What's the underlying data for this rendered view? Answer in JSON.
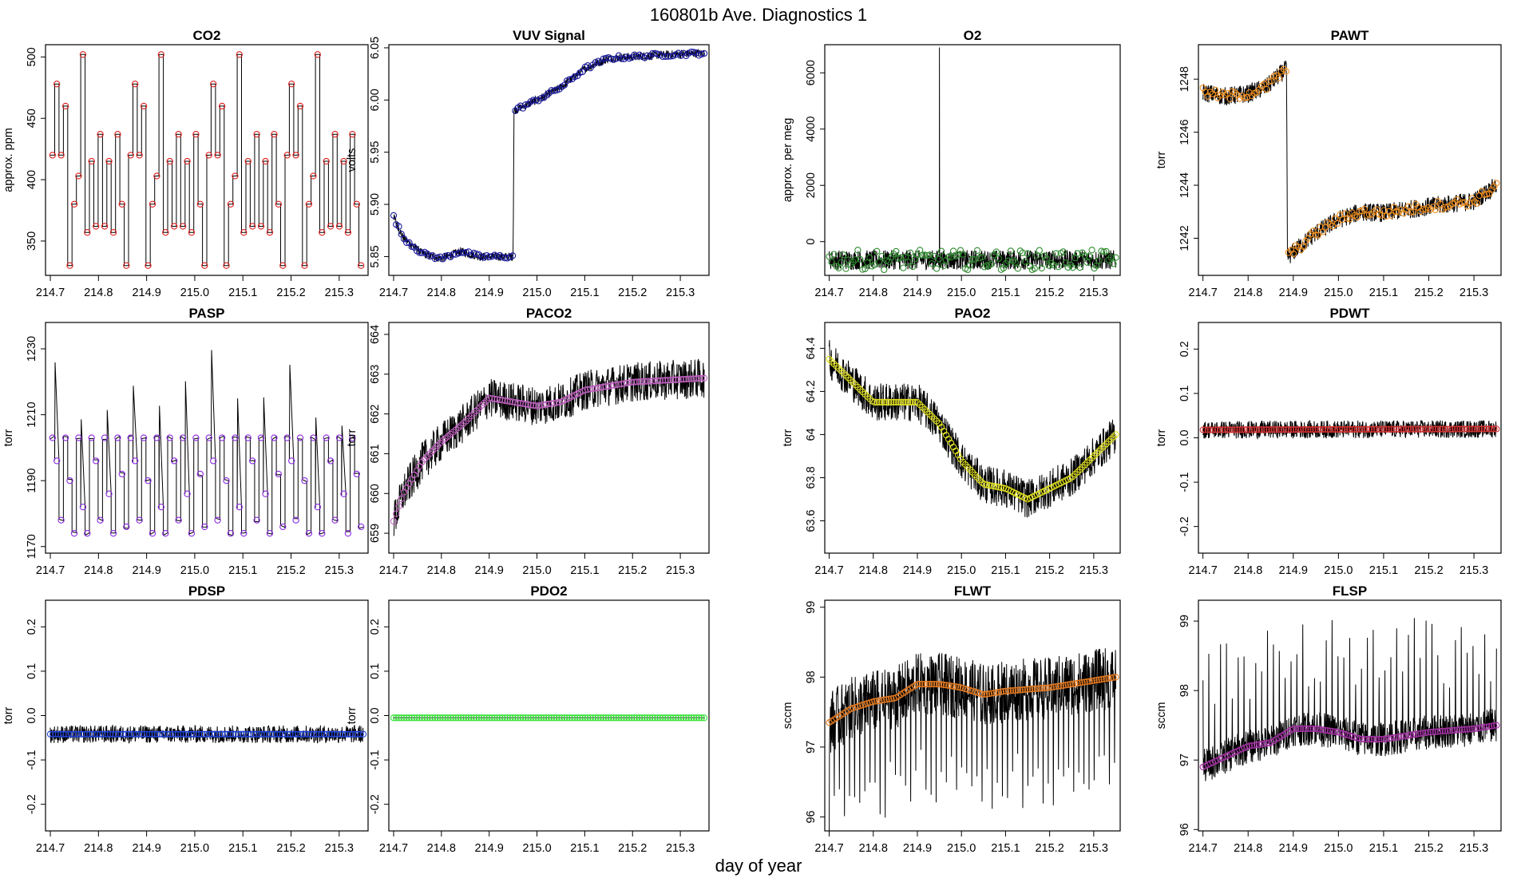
{
  "figure": {
    "title": "160801b   Ave. Diagnostics 1",
    "xlabel": "day of year"
  },
  "chart_data": [
    {
      "type": "line",
      "title": "CO2",
      "ylabel": "approx. ppm",
      "xlim": [
        214.69,
        215.36
      ],
      "ylim": [
        322,
        510
      ],
      "yticks": [
        350,
        400,
        450,
        500
      ],
      "xticks": [
        214.7,
        214.8,
        214.9,
        215.0,
        215.1,
        215.2,
        215.3
      ],
      "pattern": "cycle",
      "levels": [
        420,
        478,
        420,
        460,
        330,
        380,
        403,
        502,
        357,
        415,
        362,
        437,
        362,
        415,
        357,
        437,
        380,
        330
      ],
      "noise": 0,
      "marker_color": "#e02020",
      "axis_break": null
    },
    {
      "type": "line",
      "title": "VUV Signal",
      "ylabel": "volts",
      "xlim": [
        214.69,
        215.36
      ],
      "ylim": [
        5.832,
        6.053
      ],
      "yticks": [
        5.85,
        5.9,
        5.95,
        6.0,
        6.05
      ],
      "xticks": [
        214.7,
        214.8,
        214.9,
        215.0,
        215.1,
        215.2,
        215.3
      ],
      "knots": [
        [
          214.7,
          5.888
        ],
        [
          214.72,
          5.868
        ],
        [
          214.76,
          5.853
        ],
        [
          214.8,
          5.848
        ],
        [
          214.84,
          5.855
        ],
        [
          214.88,
          5.85
        ],
        [
          214.95,
          5.85
        ],
        [
          214.952,
          5.99
        ],
        [
          215.0,
          6.0
        ],
        [
          215.05,
          6.012
        ],
        [
          215.1,
          6.03
        ],
        [
          215.15,
          6.04
        ],
        [
          215.25,
          6.043
        ],
        [
          215.35,
          6.045
        ]
      ],
      "noise": 0.004,
      "marker_color": "#1a1a9c"
    },
    {
      "type": "line",
      "title": "O2",
      "ylabel": "approx. per meg",
      "xlim": [
        214.69,
        215.36
      ],
      "ylim": [
        -1200,
        7000
      ],
      "yticks": [
        0,
        2000,
        4000,
        6000
      ],
      "xticks": [
        214.7,
        214.8,
        214.9,
        215.0,
        215.1,
        215.2,
        215.3
      ],
      "knots": [
        [
          214.7,
          -650
        ],
        [
          215.35,
          -650
        ]
      ],
      "noise": 350,
      "spike": [
        214.95,
        6900
      ],
      "marker_color": "#2e8b2e"
    },
    {
      "type": "line",
      "title": "PAWT",
      "ylabel": "torr",
      "xlim": [
        214.69,
        215.36
      ],
      "ylim": [
        1240.6,
        1249.3
      ],
      "yticks": [
        1242,
        1244,
        1246,
        1248
      ],
      "xticks": [
        214.7,
        214.8,
        214.9,
        215.0,
        215.1,
        215.2,
        215.3
      ],
      "knots": [
        [
          214.7,
          1247.5
        ],
        [
          214.75,
          1247.35
        ],
        [
          214.8,
          1247.45
        ],
        [
          214.84,
          1247.7
        ],
        [
          214.885,
          1248.4
        ],
        [
          214.887,
          1241.3
        ],
        [
          214.95,
          1242.2
        ],
        [
          215.0,
          1242.7
        ],
        [
          215.05,
          1243.0
        ],
        [
          215.1,
          1242.95
        ],
        [
          215.2,
          1243.2
        ],
        [
          215.3,
          1243.4
        ],
        [
          215.35,
          1244.0
        ]
      ],
      "noise": 0.35,
      "marker_color": "#f09020"
    },
    {
      "type": "line",
      "title": "PASP",
      "ylabel": "torr",
      "xlim": [
        214.69,
        215.36
      ],
      "ylim": [
        1168,
        1238
      ],
      "yticks": [
        1170,
        1190,
        1210,
        1230
      ],
      "xticks": [
        214.7,
        214.8,
        214.9,
        215.0,
        215.1,
        215.2,
        215.3
      ],
      "pattern": "cycle",
      "levels": [
        1203,
        1196,
        1178,
        1203,
        1190,
        1174,
        1203,
        1182,
        1174,
        1203,
        1196,
        1178,
        1203,
        1186,
        1174,
        1203,
        1192,
        1176
      ],
      "noise": 1.2,
      "marker_color": "#8a2be2"
    },
    {
      "type": "line",
      "title": "PACO2",
      "ylabel": "torr",
      "xlim": [
        214.69,
        215.36
      ],
      "ylim": [
        658.5,
        664.3
      ],
      "yticks": [
        659,
        660,
        661,
        662,
        663,
        664
      ],
      "xticks": [
        214.7,
        214.8,
        214.9,
        215.0,
        215.1,
        215.2,
        215.3
      ],
      "knots": [
        [
          214.7,
          659.3
        ],
        [
          214.72,
          660.0
        ],
        [
          214.76,
          660.8
        ],
        [
          214.8,
          661.3
        ],
        [
          214.85,
          661.8
        ],
        [
          214.9,
          662.4
        ],
        [
          214.95,
          662.3
        ],
        [
          215.0,
          662.2
        ],
        [
          215.05,
          662.3
        ],
        [
          215.1,
          662.6
        ],
        [
          215.2,
          662.8
        ],
        [
          215.35,
          662.9
        ]
      ],
      "noise": 0.5,
      "marker_color": "#c060c0"
    },
    {
      "type": "line",
      "title": "PAO2",
      "ylabel": "torr",
      "xlim": [
        214.69,
        215.36
      ],
      "ylim": [
        63.45,
        64.52
      ],
      "yticks": [
        63.6,
        63.8,
        64.0,
        64.2,
        64.4
      ],
      "xticks": [
        214.7,
        214.8,
        214.9,
        215.0,
        215.1,
        215.2,
        215.3
      ],
      "knots": [
        [
          214.7,
          64.35
        ],
        [
          214.75,
          64.25
        ],
        [
          214.8,
          64.15
        ],
        [
          214.85,
          64.15
        ],
        [
          214.9,
          64.15
        ],
        [
          214.95,
          64.05
        ],
        [
          215.0,
          63.88
        ],
        [
          215.05,
          63.77
        ],
        [
          215.1,
          63.75
        ],
        [
          215.15,
          63.7
        ],
        [
          215.2,
          63.75
        ],
        [
          215.25,
          63.8
        ],
        [
          215.3,
          63.9
        ],
        [
          215.35,
          64.0
        ]
      ],
      "noise": 0.09,
      "marker_color": "#e0e020"
    },
    {
      "type": "line",
      "title": "PDWT",
      "ylabel": "torr",
      "xlim": [
        214.69,
        215.36
      ],
      "ylim": [
        -0.26,
        0.26
      ],
      "yticks": [
        -0.2,
        -0.1,
        0.0,
        0.1,
        0.2
      ],
      "xticks": [
        214.7,
        214.8,
        214.9,
        215.0,
        215.1,
        215.2,
        215.3
      ],
      "knots": [
        [
          214.7,
          0.018
        ],
        [
          215.35,
          0.02
        ]
      ],
      "noise": 0.02,
      "marker_color": "#d03030"
    },
    {
      "type": "line",
      "title": "PDSP",
      "ylabel": "torr",
      "xlim": [
        214.69,
        215.36
      ],
      "ylim": [
        -0.26,
        0.26
      ],
      "yticks": [
        -0.2,
        -0.1,
        0.0,
        0.1,
        0.2
      ],
      "xticks": [
        214.7,
        214.8,
        214.9,
        215.0,
        215.1,
        215.2,
        215.3
      ],
      "knots": [
        [
          214.7,
          -0.042
        ],
        [
          215.35,
          -0.042
        ]
      ],
      "noise": 0.02,
      "marker_color": "#2040d0"
    },
    {
      "type": "line",
      "title": "PDO2",
      "ylabel": "torr",
      "xlim": [
        214.69,
        215.36
      ],
      "ylim": [
        -0.26,
        0.26
      ],
      "yticks": [
        -0.2,
        -0.1,
        0.0,
        0.1,
        0.2
      ],
      "xticks": [
        214.7,
        214.8,
        214.9,
        215.0,
        215.1,
        215.2,
        215.3
      ],
      "knots": [
        [
          214.7,
          -0.005
        ],
        [
          215.35,
          -0.005
        ]
      ],
      "noise": 0,
      "marker_color": "#30e030"
    },
    {
      "type": "line",
      "title": "FLWT",
      "ylabel": "sccm",
      "xlim": [
        214.69,
        215.36
      ],
      "ylim": [
        95.8,
        99.1
      ],
      "yticks": [
        96.0,
        97.0,
        98.0,
        99.0
      ],
      "xticks": [
        214.7,
        214.8,
        214.9,
        215.0,
        215.1,
        215.2,
        215.3
      ],
      "knots": [
        [
          214.7,
          97.35
        ],
        [
          214.75,
          97.55
        ],
        [
          214.8,
          97.65
        ],
        [
          214.85,
          97.7
        ],
        [
          214.9,
          97.9
        ],
        [
          214.95,
          97.9
        ],
        [
          215.0,
          97.85
        ],
        [
          215.05,
          97.75
        ],
        [
          215.1,
          97.8
        ],
        [
          215.2,
          97.85
        ],
        [
          215.3,
          97.95
        ],
        [
          215.35,
          98.0
        ]
      ],
      "noise": 0.45,
      "spikes_down": true,
      "marker_color": "#e07820"
    },
    {
      "type": "line",
      "title": "FLSP",
      "ylabel": "sccm",
      "xlim": [
        214.69,
        215.36
      ],
      "ylim": [
        95.98,
        99.3
      ],
      "yticks": [
        96.0,
        97.0,
        98.0,
        99.0
      ],
      "xticks": [
        214.7,
        214.8,
        214.9,
        215.0,
        215.1,
        215.2,
        215.3
      ],
      "knots": [
        [
          214.7,
          96.9
        ],
        [
          214.75,
          97.05
        ],
        [
          214.8,
          97.2
        ],
        [
          214.85,
          97.25
        ],
        [
          214.9,
          97.45
        ],
        [
          214.95,
          97.45
        ],
        [
          215.0,
          97.4
        ],
        [
          215.05,
          97.3
        ],
        [
          215.1,
          97.3
        ],
        [
          215.2,
          97.4
        ],
        [
          215.3,
          97.45
        ],
        [
          215.35,
          97.5
        ]
      ],
      "noise": 0.25,
      "spikes_up": true,
      "marker_color": "#a030a0"
    }
  ]
}
